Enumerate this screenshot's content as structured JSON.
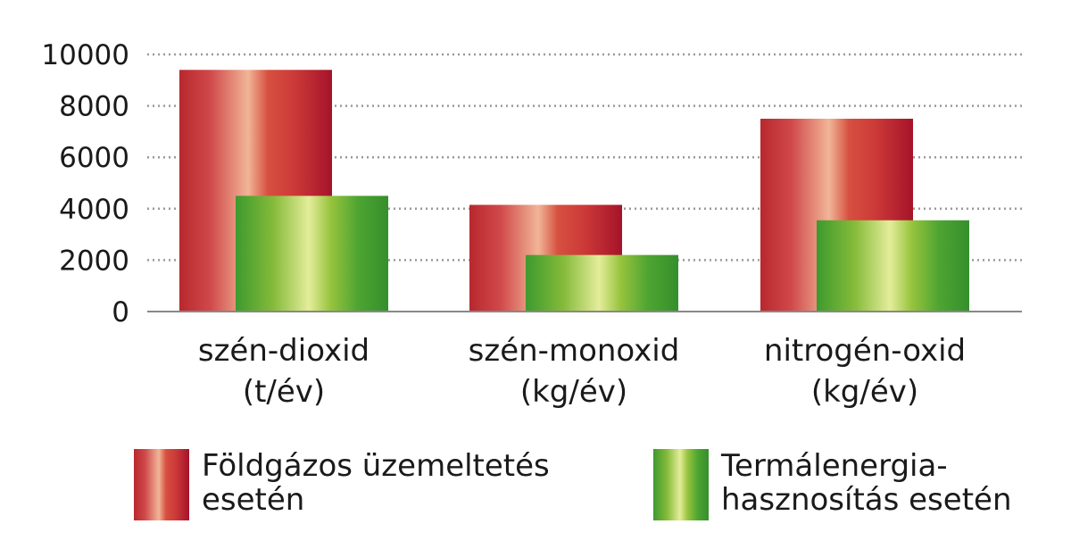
{
  "chart_data": {
    "type": "bar",
    "title": "",
    "xlabel": "",
    "ylabel": "",
    "ylim": [
      0,
      10000
    ],
    "yticks": [
      0,
      2000,
      4000,
      6000,
      8000,
      10000
    ],
    "ytick_labels": [
      "0",
      "2000",
      "4000",
      "6000",
      "8000",
      "10000"
    ],
    "grid": true,
    "legend_position": "bottom",
    "categories": [
      {
        "line1": "szén-dioxid",
        "line2": "(t/év)"
      },
      {
        "line1": "szén-monoxid",
        "line2": "(kg/év)"
      },
      {
        "line1": "nitrogén-oxid",
        "line2": "(kg/év)"
      }
    ],
    "series": [
      {
        "name_lines": [
          "Földgázos üzemeltetés",
          "esetén"
        ],
        "color": "#c8363a",
        "values": [
          9400,
          4150,
          7500
        ]
      },
      {
        "name_lines": [
          "Termálenergia-",
          "hasznosítás esetén"
        ],
        "color": "#7ab53a",
        "values": [
          4500,
          2200,
          3550
        ]
      }
    ]
  }
}
